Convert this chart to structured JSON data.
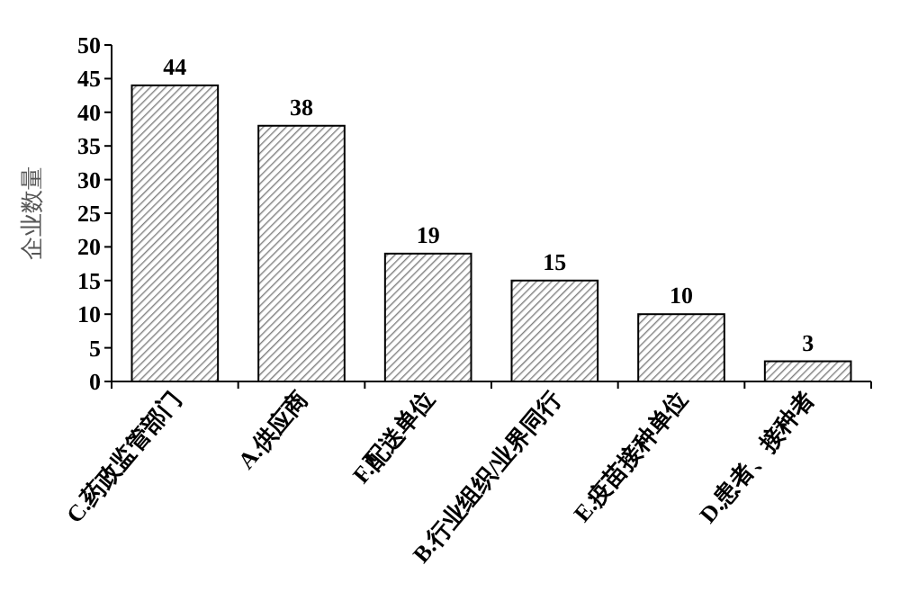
{
  "chart_data": {
    "type": "bar",
    "ylabel": "企业数量",
    "categories": [
      "C.药政监管部门",
      "A.供应商",
      "F.配送单位",
      "B.行业组织/业界同行",
      "E.疫苗接种单位",
      "D.患者、接种者"
    ],
    "values": [
      44,
      38,
      19,
      15,
      10,
      3
    ],
    "color": "#000000",
    "ylim": [
      0,
      50
    ],
    "yticks": [
      0,
      5,
      10,
      15,
      20,
      25,
      30,
      35,
      40,
      45,
      50
    ],
    "data_labels": true,
    "grid": false
  }
}
